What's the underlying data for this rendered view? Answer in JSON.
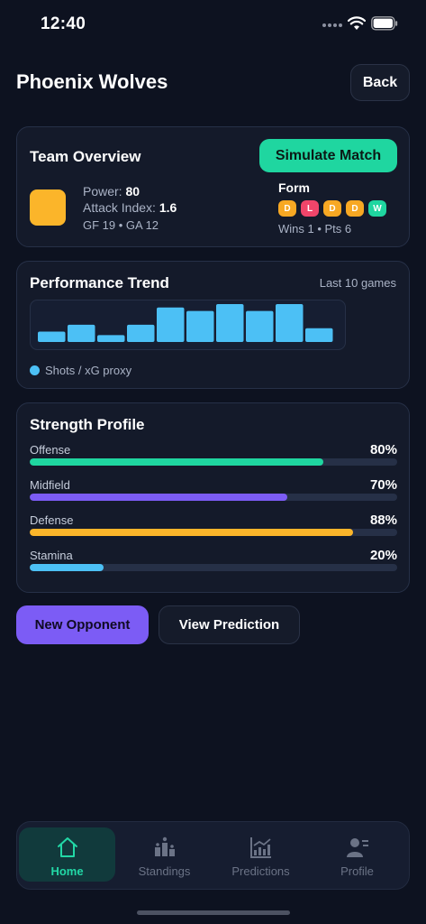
{
  "status": {
    "time": "12:40"
  },
  "header": {
    "title": "Phoenix Wolves",
    "back_label": "Back"
  },
  "overview": {
    "title": "Team Overview",
    "simulate_label": "Simulate Match",
    "team_color": "#fbb52a",
    "power_label": "Power:",
    "power_value": "80",
    "attack_label": "Attack Index:",
    "attack_value": "1.6",
    "goals": "GF 19 • GA 12",
    "form_label": "Form",
    "form": [
      {
        "result": "D",
        "color": "#f7a823"
      },
      {
        "result": "L",
        "color": "#f0456a"
      },
      {
        "result": "D",
        "color": "#f7a823"
      },
      {
        "result": "D",
        "color": "#f7a823"
      },
      {
        "result": "W",
        "color": "#1fd6a0"
      }
    ],
    "summary": "Wins 1 • Pts 6"
  },
  "trend": {
    "title": "Performance Trend",
    "subtitle": "Last 10 games",
    "legend": "Shots / xG proxy",
    "color": "#4cc0f5"
  },
  "chart_data": {
    "type": "bar",
    "title": "Performance Trend",
    "series": [
      {
        "name": "Shots / xG proxy",
        "values": [
          3,
          5,
          2,
          5,
          10,
          9,
          11,
          9,
          11,
          4
        ]
      }
    ],
    "ylim": [
      0,
      11
    ],
    "grid": false,
    "legend": "bottom-left"
  },
  "strength": {
    "title": "Strength Profile",
    "items": [
      {
        "name": "Offense",
        "value_label": "80%",
        "value": 0.8,
        "color": "#1fd6a0"
      },
      {
        "name": "Midfield",
        "value_label": "70%",
        "value": 0.7,
        "color": "#7c5cf5"
      },
      {
        "name": "Defense",
        "value_label": "88%",
        "value": 0.88,
        "color": "#fbb52a"
      },
      {
        "name": "Stamina",
        "value_label": "20%",
        "value": 0.2,
        "color": "#4cc0f5"
      }
    ]
  },
  "actions": {
    "new_opponent": "New Opponent",
    "view_prediction": "View Prediction"
  },
  "tabs": [
    {
      "label": "Home",
      "icon": "home-icon",
      "active": true
    },
    {
      "label": "Standings",
      "icon": "standings-icon",
      "active": false
    },
    {
      "label": "Predictions",
      "icon": "predictions-icon",
      "active": false
    },
    {
      "label": "Profile",
      "icon": "profile-icon",
      "active": false
    }
  ]
}
